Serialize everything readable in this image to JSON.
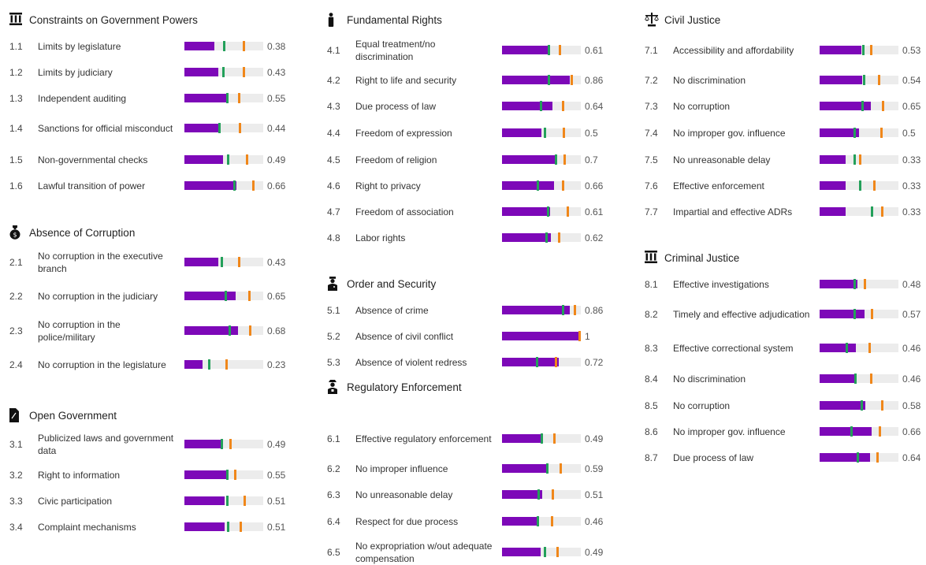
{
  "colors": {
    "score": "#7d08b8",
    "regional_marker": "#23a05a",
    "income_marker": "#f0871a",
    "track": "#ececec"
  },
  "chart_data": {
    "type": "bar",
    "scale": [
      0,
      1
    ],
    "sections": [
      {
        "icon": "pillars-icon",
        "title": "Constraints on Government Powers",
        "items": [
          {
            "id": "1.1",
            "label": "Limits by legislature",
            "value": "0.38",
            "score": 0.38,
            "green": 0.5,
            "orange": 0.75
          },
          {
            "id": "1.2",
            "label": "Limits by judiciary",
            "value": "0.43",
            "score": 0.43,
            "green": 0.49,
            "orange": 0.75
          },
          {
            "id": "1.3",
            "label": "Independent auditing",
            "value": "0.55",
            "score": 0.55,
            "green": 0.54,
            "orange": 0.69
          },
          {
            "id": "1.4",
            "label": "Sanctions for official misconduct",
            "value": "0.44",
            "score": 0.44,
            "green": 0.44,
            "orange": 0.7
          },
          {
            "id": "1.5",
            "label": "Non-governmental checks",
            "value": "0.49",
            "score": 0.49,
            "green": 0.55,
            "orange": 0.79
          },
          {
            "id": "1.6",
            "label": "Lawful transition of power",
            "value": "0.66",
            "score": 0.66,
            "green": 0.63,
            "orange": 0.87
          }
        ]
      },
      {
        "icon": "money-bag-icon",
        "title": "Absence of Corruption",
        "items": [
          {
            "id": "2.1",
            "label": "No corruption in the executive branch",
            "value": "0.43",
            "score": 0.43,
            "green": 0.47,
            "orange": 0.69
          },
          {
            "id": "2.2",
            "label": "No corruption in the judiciary",
            "value": "0.65",
            "score": 0.65,
            "green": 0.52,
            "orange": 0.82
          },
          {
            "id": "2.3",
            "label": "No corruption in the police/military",
            "value": "0.68",
            "score": 0.68,
            "green": 0.57,
            "orange": 0.83
          },
          {
            "id": "2.4",
            "label": "No corruption in the legislature",
            "value": "0.23",
            "score": 0.23,
            "green": 0.31,
            "orange": 0.53
          }
        ]
      },
      {
        "icon": "document-icon",
        "title": "Open Government",
        "items": [
          {
            "id": "3.1",
            "label": "Publicized laws and government data",
            "value": "0.49",
            "score": 0.49,
            "green": 0.47,
            "orange": 0.58
          },
          {
            "id": "3.2",
            "label": "Right to information",
            "value": "0.55",
            "score": 0.55,
            "green": 0.54,
            "orange": 0.64
          },
          {
            "id": "3.3",
            "label": "Civic participation",
            "value": "0.51",
            "score": 0.51,
            "green": 0.54,
            "orange": 0.76
          },
          {
            "id": "3.4",
            "label": "Complaint mechanisms",
            "value": "0.51",
            "score": 0.51,
            "green": 0.55,
            "orange": 0.71
          }
        ]
      },
      {
        "icon": "person-icon",
        "title": "Fundamental Rights",
        "items": [
          {
            "id": "4.1",
            "label": "Equal treatment/no discrimination",
            "value": "0.61",
            "score": 0.61,
            "green": 0.59,
            "orange": 0.73
          },
          {
            "id": "4.2",
            "label": "Right to life and security",
            "value": "0.86",
            "score": 0.86,
            "green": 0.59,
            "orange": 0.88
          },
          {
            "id": "4.3",
            "label": "Due process of law",
            "value": "0.64",
            "score": 0.64,
            "green": 0.49,
            "orange": 0.77
          },
          {
            "id": "4.4",
            "label": "Freedom of expression",
            "value": "0.5",
            "score": 0.5,
            "green": 0.54,
            "orange": 0.78
          },
          {
            "id": "4.5",
            "label": "Freedom of religion",
            "value": "0.7",
            "score": 0.7,
            "green": 0.68,
            "orange": 0.79
          },
          {
            "id": "4.6",
            "label": "Right to privacy",
            "value": "0.66",
            "score": 0.66,
            "green": 0.45,
            "orange": 0.77
          },
          {
            "id": "4.7",
            "label": "Freedom of association",
            "value": "0.61",
            "score": 0.61,
            "green": 0.58,
            "orange": 0.83
          },
          {
            "id": "4.8",
            "label": "Labor rights",
            "value": "0.62",
            "score": 0.62,
            "green": 0.56,
            "orange": 0.72
          }
        ]
      },
      {
        "icon": "police-officer-icon",
        "title": "Order and Security",
        "items": [
          {
            "id": "5.1",
            "label": "Absence of crime",
            "value": "0.86",
            "score": 0.86,
            "green": 0.77,
            "orange": 0.92
          },
          {
            "id": "5.2",
            "label": "Absence of civil conflict",
            "value": "1",
            "score": 1.0,
            "green": 0.98,
            "orange": 1.0
          },
          {
            "id": "5.3",
            "label": "Absence of violent redress",
            "value": "0.72",
            "score": 0.72,
            "green": 0.44,
            "orange": 0.68
          }
        ]
      },
      {
        "icon": "inspector-icon",
        "title": "Regulatory Enforcement",
        "items": [
          {
            "id": "6.1",
            "label": "Effective regulatory enforcement",
            "value": "0.49",
            "score": 0.49,
            "green": 0.5,
            "orange": 0.66
          },
          {
            "id": "6.2",
            "label": "No improper influence",
            "value": "0.59",
            "score": 0.59,
            "green": 0.57,
            "orange": 0.74
          },
          {
            "id": "6.3",
            "label": "No unreasonable delay",
            "value": "0.51",
            "score": 0.51,
            "green": 0.46,
            "orange": 0.64
          },
          {
            "id": "6.4",
            "label": "Respect for due process",
            "value": "0.46",
            "score": 0.46,
            "green": 0.45,
            "orange": 0.63
          },
          {
            "id": "6.5",
            "label": "No expropriation w/out adequate compensation",
            "value": "0.49",
            "score": 0.49,
            "green": 0.54,
            "orange": 0.7
          }
        ]
      },
      {
        "icon": "scales-icon",
        "title": "Civil Justice",
        "items": [
          {
            "id": "7.1",
            "label": "Accessibility and affordability",
            "value": "0.53",
            "score": 0.53,
            "green": 0.55,
            "orange": 0.65
          },
          {
            "id": "7.2",
            "label": "No discrimination",
            "value": "0.54",
            "score": 0.54,
            "green": 0.56,
            "orange": 0.75
          },
          {
            "id": "7.3",
            "label": "No corruption",
            "value": "0.65",
            "score": 0.65,
            "green": 0.54,
            "orange": 0.8
          },
          {
            "id": "7.4",
            "label": "No improper gov. influence",
            "value": "0.5",
            "score": 0.5,
            "green": 0.44,
            "orange": 0.78
          },
          {
            "id": "7.5",
            "label": "No unreasonable delay",
            "value": "0.33",
            "score": 0.33,
            "green": 0.44,
            "orange": 0.51
          },
          {
            "id": "7.6",
            "label": "Effective enforcement",
            "value": "0.33",
            "score": 0.33,
            "green": 0.51,
            "orange": 0.69
          },
          {
            "id": "7.7",
            "label": "Impartial and effective ADRs",
            "value": "0.33",
            "score": 0.33,
            "green": 0.66,
            "orange": 0.79
          }
        ]
      },
      {
        "icon": "courthouse-icon",
        "title": "Criminal Justice",
        "items": [
          {
            "id": "8.1",
            "label": "Effective investigations",
            "value": "0.48",
            "score": 0.48,
            "green": 0.44,
            "orange": 0.57
          },
          {
            "id": "8.2",
            "label": "Timely and effective adjudication",
            "value": "0.57",
            "score": 0.57,
            "green": 0.44,
            "orange": 0.66
          },
          {
            "id": "8.3",
            "label": "Effective correctional system",
            "value": "0.46",
            "score": 0.46,
            "green": 0.34,
            "orange": 0.63
          },
          {
            "id": "8.4",
            "label": "No discrimination",
            "value": "0.46",
            "score": 0.46,
            "green": 0.45,
            "orange": 0.65
          },
          {
            "id": "8.5",
            "label": "No corruption",
            "value": "0.58",
            "score": 0.58,
            "green": 0.53,
            "orange": 0.79
          },
          {
            "id": "8.6",
            "label": "No improper gov. influence",
            "value": "0.66",
            "score": 0.66,
            "green": 0.4,
            "orange": 0.76
          },
          {
            "id": "8.7",
            "label": "Due process of law",
            "value": "0.64",
            "score": 0.64,
            "green": 0.48,
            "orange": 0.73
          }
        ]
      }
    ]
  }
}
